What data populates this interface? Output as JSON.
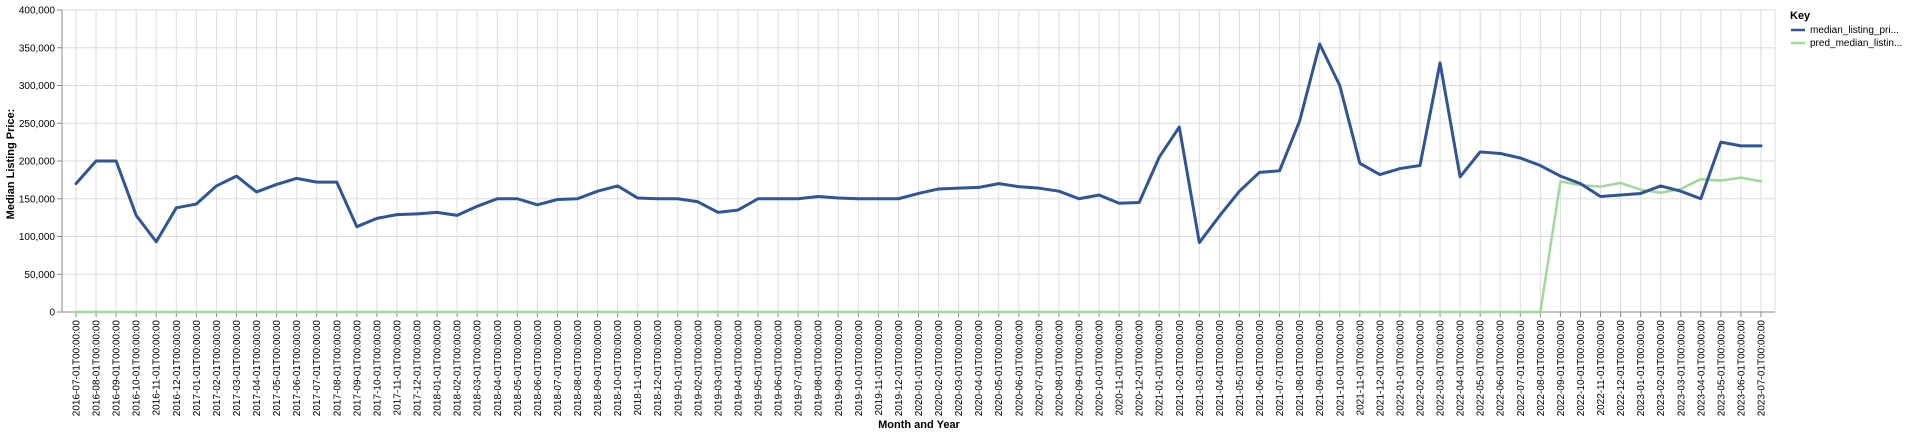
{
  "chart_data": {
    "type": "line",
    "xlabel": "Month and Year",
    "ylabel": "Median Listing Price:",
    "ylim": [
      0,
      400000
    ],
    "yticks": [
      0,
      50000,
      100000,
      150000,
      200000,
      250000,
      300000,
      350000,
      400000
    ],
    "grid": true,
    "legend": {
      "title": "Key",
      "placement": "top-right"
    },
    "x": [
      "2016-07-01T00:00:00",
      "2016-08-01T00:00:00",
      "2016-09-01T00:00:00",
      "2016-10-01T00:00:00",
      "2016-11-01T00:00:00",
      "2016-12-01T00:00:00",
      "2017-01-01T00:00:00",
      "2017-02-01T00:00:00",
      "2017-03-01T00:00:00",
      "2017-04-01T00:00:00",
      "2017-05-01T00:00:00",
      "2017-06-01T00:00:00",
      "2017-07-01T00:00:00",
      "2017-08-01T00:00:00",
      "2017-09-01T00:00:00",
      "2017-10-01T00:00:00",
      "2017-11-01T00:00:00",
      "2017-12-01T00:00:00",
      "2018-01-01T00:00:00",
      "2018-02-01T00:00:00",
      "2018-03-01T00:00:00",
      "2018-04-01T00:00:00",
      "2018-05-01T00:00:00",
      "2018-06-01T00:00:00",
      "2018-07-01T00:00:00",
      "2018-08-01T00:00:00",
      "2018-09-01T00:00:00",
      "2018-10-01T00:00:00",
      "2018-11-01T00:00:00",
      "2018-12-01T00:00:00",
      "2019-01-01T00:00:00",
      "2019-02-01T00:00:00",
      "2019-03-01T00:00:00",
      "2019-04-01T00:00:00",
      "2019-05-01T00:00:00",
      "2019-06-01T00:00:00",
      "2019-07-01T00:00:00",
      "2019-08-01T00:00:00",
      "2019-09-01T00:00:00",
      "2019-10-01T00:00:00",
      "2019-11-01T00:00:00",
      "2019-12-01T00:00:00",
      "2020-01-01T00:00:00",
      "2020-02-01T00:00:00",
      "2020-03-01T00:00:00",
      "2020-04-01T00:00:00",
      "2020-05-01T00:00:00",
      "2020-06-01T00:00:00",
      "2020-07-01T00:00:00",
      "2020-08-01T00:00:00",
      "2020-09-01T00:00:00",
      "2020-10-01T00:00:00",
      "2020-11-01T00:00:00",
      "2020-12-01T00:00:00",
      "2021-01-01T00:00:00",
      "2021-02-01T00:00:00",
      "2021-03-01T00:00:00",
      "2021-04-01T00:00:00",
      "2021-05-01T00:00:00",
      "2021-06-01T00:00:00",
      "2021-07-01T00:00:00",
      "2021-08-01T00:00:00",
      "2021-09-01T00:00:00",
      "2021-10-01T00:00:00",
      "2021-11-01T00:00:00",
      "2021-12-01T00:00:00",
      "2022-01-01T00:00:00",
      "2022-02-01T00:00:00",
      "2022-03-01T00:00:00",
      "2022-04-01T00:00:00",
      "2022-05-01T00:00:00",
      "2022-06-01T00:00:00",
      "2022-07-01T00:00:00",
      "2022-08-01T00:00:00",
      "2022-09-01T00:00:00",
      "2022-10-01T00:00:00",
      "2022-11-01T00:00:00",
      "2022-12-01T00:00:00",
      "2023-01-01T00:00:00",
      "2023-02-01T00:00:00",
      "2023-03-01T00:00:00",
      "2023-04-01T00:00:00",
      "2023-05-01T00:00:00",
      "2023-06-01T00:00:00",
      "2023-07-01T00:00:00"
    ],
    "series": [
      {
        "name": "median_listing_pri...",
        "color": "#2f5597",
        "values": [
          170000,
          200000,
          200000,
          128000,
          93000,
          138000,
          143000,
          167000,
          180000,
          159000,
          169000,
          177000,
          172000,
          172000,
          113000,
          124000,
          129000,
          130000,
          132000,
          128000,
          140000,
          150000,
          150000,
          142000,
          149000,
          150000,
          160000,
          167000,
          151000,
          150000,
          150000,
          146000,
          132000,
          135000,
          150000,
          150000,
          150000,
          153000,
          151000,
          150000,
          150000,
          150000,
          157000,
          163000,
          164000,
          165000,
          170000,
          166000,
          164000,
          160000,
          150000,
          155000,
          144000,
          145000,
          205000,
          245000,
          92000,
          127000,
          160000,
          185000,
          187000,
          253000,
          355000,
          300000,
          197000,
          182000,
          190000,
          194000,
          330000,
          179000,
          212000,
          210000,
          204000,
          194000,
          180000,
          170000,
          153000,
          155000,
          157000,
          167000,
          160000,
          150000,
          225000,
          220000,
          220000
        ]
      },
      {
        "name": "pred_median_listin...",
        "color": "#a1d99b",
        "values": [
          0,
          0,
          0,
          0,
          0,
          0,
          0,
          0,
          0,
          0,
          0,
          0,
          0,
          0,
          0,
          0,
          0,
          0,
          0,
          0,
          0,
          0,
          0,
          0,
          0,
          0,
          0,
          0,
          0,
          0,
          0,
          0,
          0,
          0,
          0,
          0,
          0,
          0,
          0,
          0,
          0,
          0,
          0,
          0,
          0,
          0,
          0,
          0,
          0,
          0,
          0,
          0,
          0,
          0,
          0,
          0,
          0,
          0,
          0,
          0,
          0,
          0,
          0,
          0,
          0,
          0,
          0,
          0,
          0,
          0,
          0,
          0,
          0,
          0,
          173000,
          168000,
          166000,
          171000,
          162000,
          158000,
          163000,
          176000,
          174000,
          178000,
          173000
        ]
      }
    ]
  }
}
